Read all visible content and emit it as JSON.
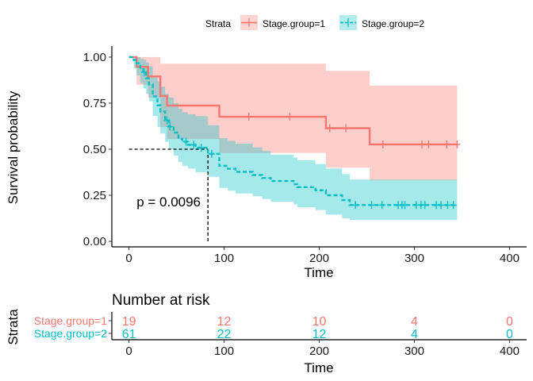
{
  "chart_data": [
    {
      "type": "line",
      "subtype": "kaplan-meier",
      "xlabel": "Time",
      "ylabel": "Survival probability",
      "xlim": [
        -18,
        418
      ],
      "ylim": [
        -0.03,
        1.06
      ],
      "x_ticks": [
        "0",
        "100",
        "200",
        "300",
        "400"
      ],
      "y_ticks": [
        "0.00",
        "0.25",
        "0.50",
        "0.75",
        "1.00"
      ],
      "x_tick_values": [
        0,
        100,
        200,
        300,
        400
      ],
      "y_tick_values": [
        0,
        0.25,
        0.5,
        0.75,
        1.0
      ],
      "legend": {
        "title": "Strata",
        "placement": "top"
      },
      "annotation": "p = 0.0096",
      "annotation_pos": [
        8,
        0.19
      ],
      "median_line": {
        "x": 83,
        "y": 0.5
      },
      "series": [
        {
          "name": "Stage.group=1",
          "color": "#F8766D",
          "linestyle": "solid",
          "steps": [
            [
              0,
              1.0
            ],
            [
              8,
              0.947
            ],
            [
              20,
              0.895
            ],
            [
              33,
              0.789
            ],
            [
              40,
              0.737
            ],
            [
              95,
              0.676
            ],
            [
              207,
              0.614
            ],
            [
              253,
              0.526
            ],
            [
              345,
              0.526
            ]
          ],
          "upper": [
            [
              0,
              1.0
            ],
            [
              8,
              1.0
            ],
            [
              20,
              1.0
            ],
            [
              33,
              0.965
            ],
            [
              40,
              0.965
            ],
            [
              95,
              0.965
            ],
            [
              207,
              0.925
            ],
            [
              253,
              0.845
            ],
            [
              345,
              0.845
            ]
          ],
          "lower": [
            [
              0,
              1.0
            ],
            [
              8,
              0.85
            ],
            [
              20,
              0.78
            ],
            [
              33,
              0.62
            ],
            [
              40,
              0.555
            ],
            [
              95,
              0.48
            ],
            [
              207,
              0.4
            ],
            [
              253,
              0.33
            ],
            [
              345,
              0.33
            ]
          ],
          "censor": [
            126,
            169,
            211,
            228,
            267,
            308,
            315,
            334,
            345
          ]
        },
        {
          "name": "Stage.group=2",
          "color": "#00BFC4",
          "linestyle": "dashed",
          "steps": [
            [
              0,
              1.0
            ],
            [
              5,
              0.984
            ],
            [
              8,
              0.967
            ],
            [
              12,
              0.934
            ],
            [
              15,
              0.918
            ],
            [
              18,
              0.885
            ],
            [
              21,
              0.852
            ],
            [
              25,
              0.787
            ],
            [
              30,
              0.738
            ],
            [
              33,
              0.705
            ],
            [
              38,
              0.656
            ],
            [
              42,
              0.623
            ],
            [
              47,
              0.59
            ],
            [
              52,
              0.557
            ],
            [
              56,
              0.541
            ],
            [
              62,
              0.524
            ],
            [
              70,
              0.508
            ],
            [
              83,
              0.475
            ],
            [
              95,
              0.41
            ],
            [
              104,
              0.394
            ],
            [
              112,
              0.377
            ],
            [
              130,
              0.36
            ],
            [
              140,
              0.344
            ],
            [
              149,
              0.327
            ],
            [
              173,
              0.31
            ],
            [
              177,
              0.294
            ],
            [
              196,
              0.277
            ],
            [
              207,
              0.25
            ],
            [
              224,
              0.224
            ],
            [
              232,
              0.197
            ],
            [
              345,
              0.197
            ]
          ],
          "upper": [
            [
              0,
              1.0
            ],
            [
              5,
              1.0
            ],
            [
              8,
              1.0
            ],
            [
              12,
              0.99
            ],
            [
              15,
              0.985
            ],
            [
              18,
              0.97
            ],
            [
              21,
              0.95
            ],
            [
              25,
              0.9
            ],
            [
              30,
              0.87
            ],
            [
              33,
              0.84
            ],
            [
              38,
              0.8
            ],
            [
              42,
              0.78
            ],
            [
              47,
              0.75
            ],
            [
              52,
              0.72
            ],
            [
              56,
              0.7
            ],
            [
              62,
              0.69
            ],
            [
              70,
              0.68
            ],
            [
              83,
              0.63
            ],
            [
              95,
              0.56
            ],
            [
              104,
              0.545
            ],
            [
              112,
              0.53
            ],
            [
              130,
              0.51
            ],
            [
              140,
              0.49
            ],
            [
              149,
              0.47
            ],
            [
              173,
              0.455
            ],
            [
              177,
              0.44
            ],
            [
              196,
              0.42
            ],
            [
              207,
              0.395
            ],
            [
              224,
              0.365
            ],
            [
              232,
              0.335
            ],
            [
              345,
              0.335
            ]
          ],
          "lower": [
            [
              0,
              1.0
            ],
            [
              5,
              0.94
            ],
            [
              8,
              0.9
            ],
            [
              12,
              0.86
            ],
            [
              15,
              0.83
            ],
            [
              18,
              0.8
            ],
            [
              21,
              0.76
            ],
            [
              25,
              0.68
            ],
            [
              30,
              0.62
            ],
            [
              33,
              0.585
            ],
            [
              38,
              0.54
            ],
            [
              42,
              0.5
            ],
            [
              47,
              0.465
            ],
            [
              52,
              0.43
            ],
            [
              56,
              0.41
            ],
            [
              62,
              0.395
            ],
            [
              70,
              0.375
            ],
            [
              83,
              0.35
            ],
            [
              95,
              0.29
            ],
            [
              104,
              0.275
            ],
            [
              112,
              0.26
            ],
            [
              130,
              0.245
            ],
            [
              140,
              0.23
            ],
            [
              149,
              0.215
            ],
            [
              173,
              0.2
            ],
            [
              177,
              0.185
            ],
            [
              196,
              0.17
            ],
            [
              207,
              0.145
            ],
            [
              224,
              0.125
            ],
            [
              232,
              0.115
            ],
            [
              345,
              0.115
            ]
          ],
          "censor": [
            16,
            40,
            43,
            60,
            68,
            76,
            87,
            238,
            255,
            266,
            283,
            287,
            290,
            302,
            307,
            311,
            323,
            328,
            335,
            341
          ]
        }
      ]
    },
    {
      "type": "table",
      "title": "Number at risk",
      "xlabel": "Time",
      "ylabel": "Strata",
      "xlim": [
        -18,
        418
      ],
      "x_ticks": [
        "0",
        "100",
        "200",
        "300",
        "400"
      ],
      "x_tick_values": [
        0,
        100,
        200,
        300,
        400
      ],
      "rows": [
        {
          "name": "Stage.group=1",
          "color": "#F8766D",
          "values": [
            "19",
            "12",
            "10",
            "4",
            "0"
          ]
        },
        {
          "name": "Stage.group=2",
          "color": "#00BFC4",
          "values": [
            "61",
            "22",
            "12",
            "4",
            "0"
          ]
        }
      ]
    }
  ]
}
